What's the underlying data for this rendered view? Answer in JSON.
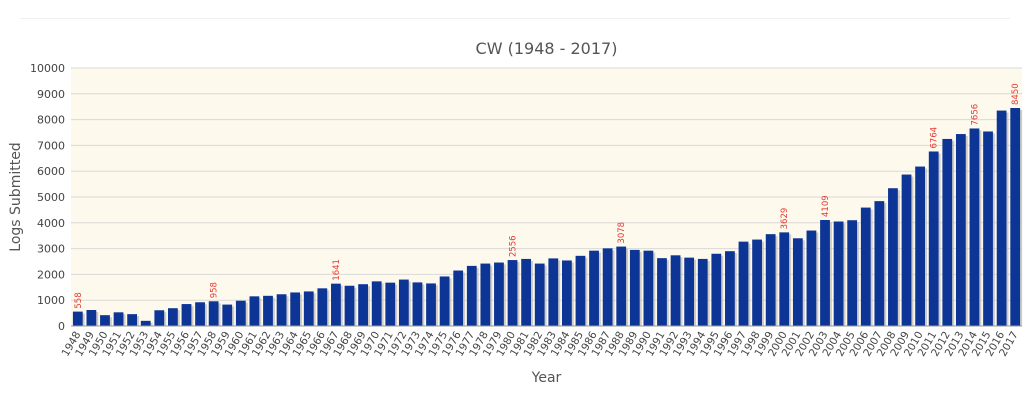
{
  "chart_data": {
    "type": "bar",
    "title": "CW (1948 - 2017)",
    "xlabel": "Year",
    "ylabel": "Logs Submitted",
    "ylim": [
      0,
      10000
    ],
    "yticks": [
      0,
      1000,
      2000,
      3000,
      4000,
      5000,
      6000,
      7000,
      8000,
      9000,
      10000
    ],
    "grid": true,
    "legend": "none",
    "colors": {
      "bar": "#0d3596",
      "bar_shadow": "#b9b9b9",
      "plot_background": "#fdf9ec",
      "gridline": "#d9d9d9",
      "data_label": "#e53935"
    },
    "categories": [
      "1948",
      "1949",
      "1950",
      "1951",
      "1952",
      "1953",
      "1954",
      "1955",
      "1956",
      "1957",
      "1958",
      "1959",
      "1960",
      "1961",
      "1962",
      "1963",
      "1964",
      "1965",
      "1966",
      "1967",
      "1968",
      "1969",
      "1970",
      "1971",
      "1972",
      "1973",
      "1974",
      "1975",
      "1976",
      "1977",
      "1978",
      "1979",
      "1980",
      "1981",
      "1982",
      "1983",
      "1984",
      "1985",
      "1986",
      "1987",
      "1988",
      "1989",
      "1990",
      "1991",
      "1992",
      "1993",
      "1994",
      "1995",
      "1996",
      "1997",
      "1998",
      "1999",
      "2000",
      "2001",
      "2002",
      "2003",
      "2004",
      "2005",
      "2006",
      "2007",
      "2008",
      "2009",
      "2010",
      "2011",
      "2012",
      "2013",
      "2014",
      "2015",
      "2016",
      "2017"
    ],
    "values": [
      558,
      620,
      420,
      530,
      460,
      200,
      610,
      690,
      850,
      920,
      958,
      830,
      980,
      1150,
      1170,
      1230,
      1300,
      1340,
      1460,
      1641,
      1560,
      1620,
      1730,
      1680,
      1800,
      1690,
      1650,
      1920,
      2150,
      2330,
      2420,
      2460,
      2556,
      2600,
      2420,
      2620,
      2540,
      2720,
      2920,
      3010,
      3078,
      2950,
      2920,
      2630,
      2740,
      2650,
      2600,
      2800,
      2900,
      3270,
      3350,
      3560,
      3629,
      3400,
      3700,
      4109,
      4050,
      4100,
      4590,
      4840,
      5340,
      5870,
      6180,
      6764,
      7250,
      7440,
      7656,
      7540,
      8350,
      8450
    ],
    "data_labels": [
      {
        "year": "1948",
        "text": "558"
      },
      {
        "year": "1958",
        "text": "958"
      },
      {
        "year": "1967",
        "text": "1641"
      },
      {
        "year": "1980",
        "text": "2556"
      },
      {
        "year": "1988",
        "text": "3078"
      },
      {
        "year": "2000",
        "text": "3629"
      },
      {
        "year": "2003",
        "text": "4109"
      },
      {
        "year": "2011",
        "text": "6764"
      },
      {
        "year": "2014",
        "text": "7656"
      },
      {
        "year": "2017",
        "text": "8450"
      }
    ]
  }
}
